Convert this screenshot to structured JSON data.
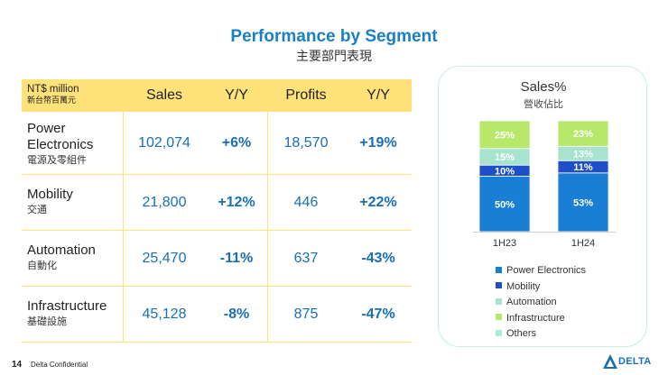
{
  "title": "Performance by Segment",
  "subtitle": "主要部門表現",
  "table": {
    "unit": "NT$ million",
    "unit_cn": "新台幣百萬元",
    "headers": [
      "Sales",
      "Y/Y",
      "Profits",
      "Y/Y"
    ],
    "rows": [
      {
        "name": "Power",
        "name2": "Electronics",
        "name_cn": "電源及零組件",
        "sales": "102,074",
        "sales_yy": "+6%",
        "profits": "18,570",
        "profits_yy": "+19%"
      },
      {
        "name": "Mobility",
        "name2": "",
        "name_cn": "交通",
        "sales": "21,800",
        "sales_yy": "+12%",
        "profits": "446",
        "profits_yy": "+22%"
      },
      {
        "name": "Automation",
        "name2": "",
        "name_cn": "自動化",
        "sales": "25,470",
        "sales_yy": "-11%",
        "profits": "637",
        "profits_yy": "-43%"
      },
      {
        "name": "Infrastructure",
        "name2": "",
        "name_cn": "基礎設施",
        "sales": "45,128",
        "sales_yy": "-8%",
        "profits": "875",
        "profits_yy": "-47%"
      }
    ]
  },
  "chart_data": {
    "type": "bar",
    "stacked": true,
    "title": "Sales%",
    "subtitle": "營收佔比",
    "categories": [
      "1H23",
      "1H24"
    ],
    "series": [
      {
        "name": "Power Electronics",
        "values": [
          50,
          53
        ],
        "color": "#1a7fd4"
      },
      {
        "name": "Mobility",
        "values": [
          10,
          11
        ],
        "color": "#1f4fc8"
      },
      {
        "name": "Automation",
        "values": [
          15,
          13
        ],
        "color": "#a7e3cf"
      },
      {
        "name": "Infrastructure",
        "values": [
          25,
          23
        ],
        "color": "#b8e86a"
      },
      {
        "name": "Others",
        "values": [
          null,
          null
        ],
        "color": "#a9ecd8"
      }
    ],
    "value_suffix": "%"
  },
  "footer": {
    "page_number": "14",
    "confidential": "Delta Confidential",
    "logo_text": "DELTA"
  }
}
